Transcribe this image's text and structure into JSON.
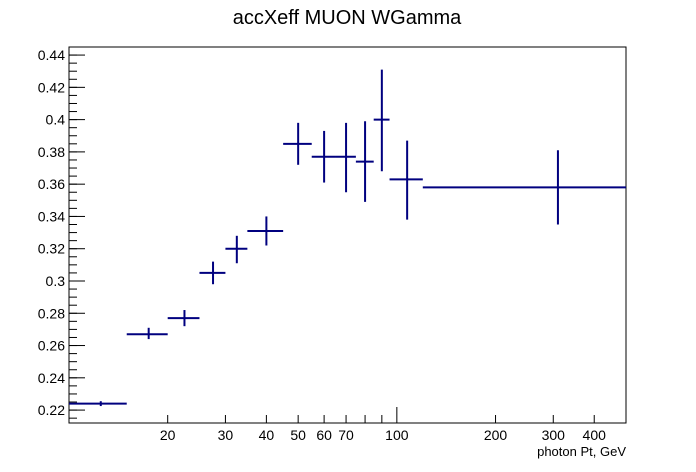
{
  "chart_data": {
    "type": "scatter",
    "title": "accXeff  MUON WGamma",
    "xlabel": "photon Pt, GeV",
    "ylabel": "",
    "x_scale": "log",
    "xlim": [
      10,
      500
    ],
    "ylim": [
      0.212,
      0.445
    ],
    "grid": false,
    "legend": "none",
    "colors": {
      "series": "#00007f",
      "axis": "#000000"
    },
    "x_ticks": [
      20,
      30,
      40,
      50,
      60,
      70,
      100,
      200,
      300,
      400
    ],
    "y_ticks": [
      0.22,
      0.24,
      0.26,
      0.28,
      0.3,
      0.32,
      0.34,
      0.36,
      0.38,
      0.4,
      0.42,
      0.44
    ],
    "x_tick_labels": [
      "20",
      "30",
      "40",
      "50",
      "60",
      "70",
      "100",
      "200",
      "300",
      "400"
    ],
    "y_tick_labels": [
      "0.22",
      "0.24",
      "0.26",
      "0.28",
      "0.3",
      "0.32",
      "0.34",
      "0.36",
      "0.38",
      "0.4",
      "0.42",
      "0.44"
    ],
    "series": [
      {
        "points": [
          {
            "x": 12.5,
            "xlo": 10,
            "xhi": 15,
            "y": 0.224,
            "ylo": 0.2225,
            "yhi": 0.2255
          },
          {
            "x": 17.5,
            "xlo": 15,
            "xhi": 20,
            "y": 0.267,
            "ylo": 0.264,
            "yhi": 0.271
          },
          {
            "x": 22.5,
            "xlo": 20,
            "xhi": 25,
            "y": 0.277,
            "ylo": 0.272,
            "yhi": 0.282
          },
          {
            "x": 27.5,
            "xlo": 25,
            "xhi": 30,
            "y": 0.305,
            "ylo": 0.298,
            "yhi": 0.312
          },
          {
            "x": 32.5,
            "xlo": 30,
            "xhi": 35,
            "y": 0.32,
            "ylo": 0.311,
            "yhi": 0.328
          },
          {
            "x": 40,
            "xlo": 35,
            "xhi": 45,
            "y": 0.331,
            "ylo": 0.322,
            "yhi": 0.34
          },
          {
            "x": 50,
            "xlo": 45,
            "xhi": 55,
            "y": 0.385,
            "ylo": 0.372,
            "yhi": 0.398
          },
          {
            "x": 60,
            "xlo": 55,
            "xhi": 65,
            "y": 0.377,
            "ylo": 0.361,
            "yhi": 0.393
          },
          {
            "x": 70,
            "xlo": 65,
            "xhi": 75,
            "y": 0.377,
            "ylo": 0.355,
            "yhi": 0.398
          },
          {
            "x": 80,
            "xlo": 75,
            "xhi": 85,
            "y": 0.374,
            "ylo": 0.349,
            "yhi": 0.399
          },
          {
            "x": 90,
            "xlo": 85,
            "xhi": 95,
            "y": 0.4,
            "ylo": 0.368,
            "yhi": 0.431
          },
          {
            "x": 107.5,
            "xlo": 95,
            "xhi": 120,
            "y": 0.363,
            "ylo": 0.338,
            "yhi": 0.387
          },
          {
            "x": 310,
            "xlo": 120,
            "xhi": 500,
            "y": 0.358,
            "ylo": 0.335,
            "yhi": 0.381
          }
        ]
      }
    ]
  }
}
